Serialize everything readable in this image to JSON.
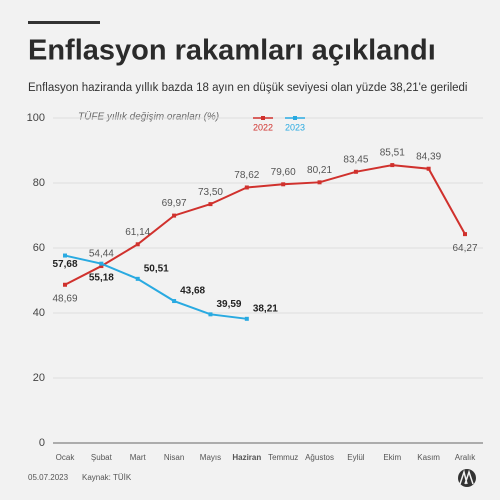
{
  "chart_data": {
    "type": "line",
    "title": "Enflasyon rakamları açıklandı",
    "subtitle": "Enflasyon haziranda yıllık bazda 18 ayın en düşük seviyesi olan yüzde 38,21'e geriledi",
    "y_label": "TÜFE yıllık değişim oranları (%)",
    "categories": [
      "Ocak",
      "Şubat",
      "Mart",
      "Nisan",
      "Mayıs",
      "Haziran",
      "Temmuz",
      "Ağustos",
      "Eylül",
      "Ekim",
      "Kasım",
      "Aralık"
    ],
    "series": [
      {
        "name": "2022",
        "color": "#d0312d",
        "values": [
          48.69,
          54.44,
          61.14,
          69.97,
          73.5,
          78.62,
          79.6,
          80.21,
          83.45,
          85.51,
          84.39,
          64.27
        ],
        "value_labels": [
          "48,69",
          "54,44",
          "61,14",
          "69,97",
          "73,50",
          "78,62",
          "79,60",
          "80,21",
          "83,45",
          "85,51",
          "84,39",
          "64,27"
        ]
      },
      {
        "name": "2023",
        "color": "#29aae1",
        "values": [
          57.68,
          55.18,
          50.51,
          43.68,
          39.59,
          38.21,
          null,
          null,
          null,
          null,
          null,
          null
        ],
        "value_labels": [
          "57,68",
          "55,18",
          "50,51",
          "43,68",
          "39,59",
          "38,21",
          null,
          null,
          null,
          null,
          null,
          null
        ]
      }
    ],
    "ylim": [
      0,
      100
    ],
    "yticks": [
      0,
      20,
      40,
      60,
      80,
      100
    ],
    "grid": true,
    "date": "05.07.2023",
    "source": "Kaynak: TÜİK"
  }
}
